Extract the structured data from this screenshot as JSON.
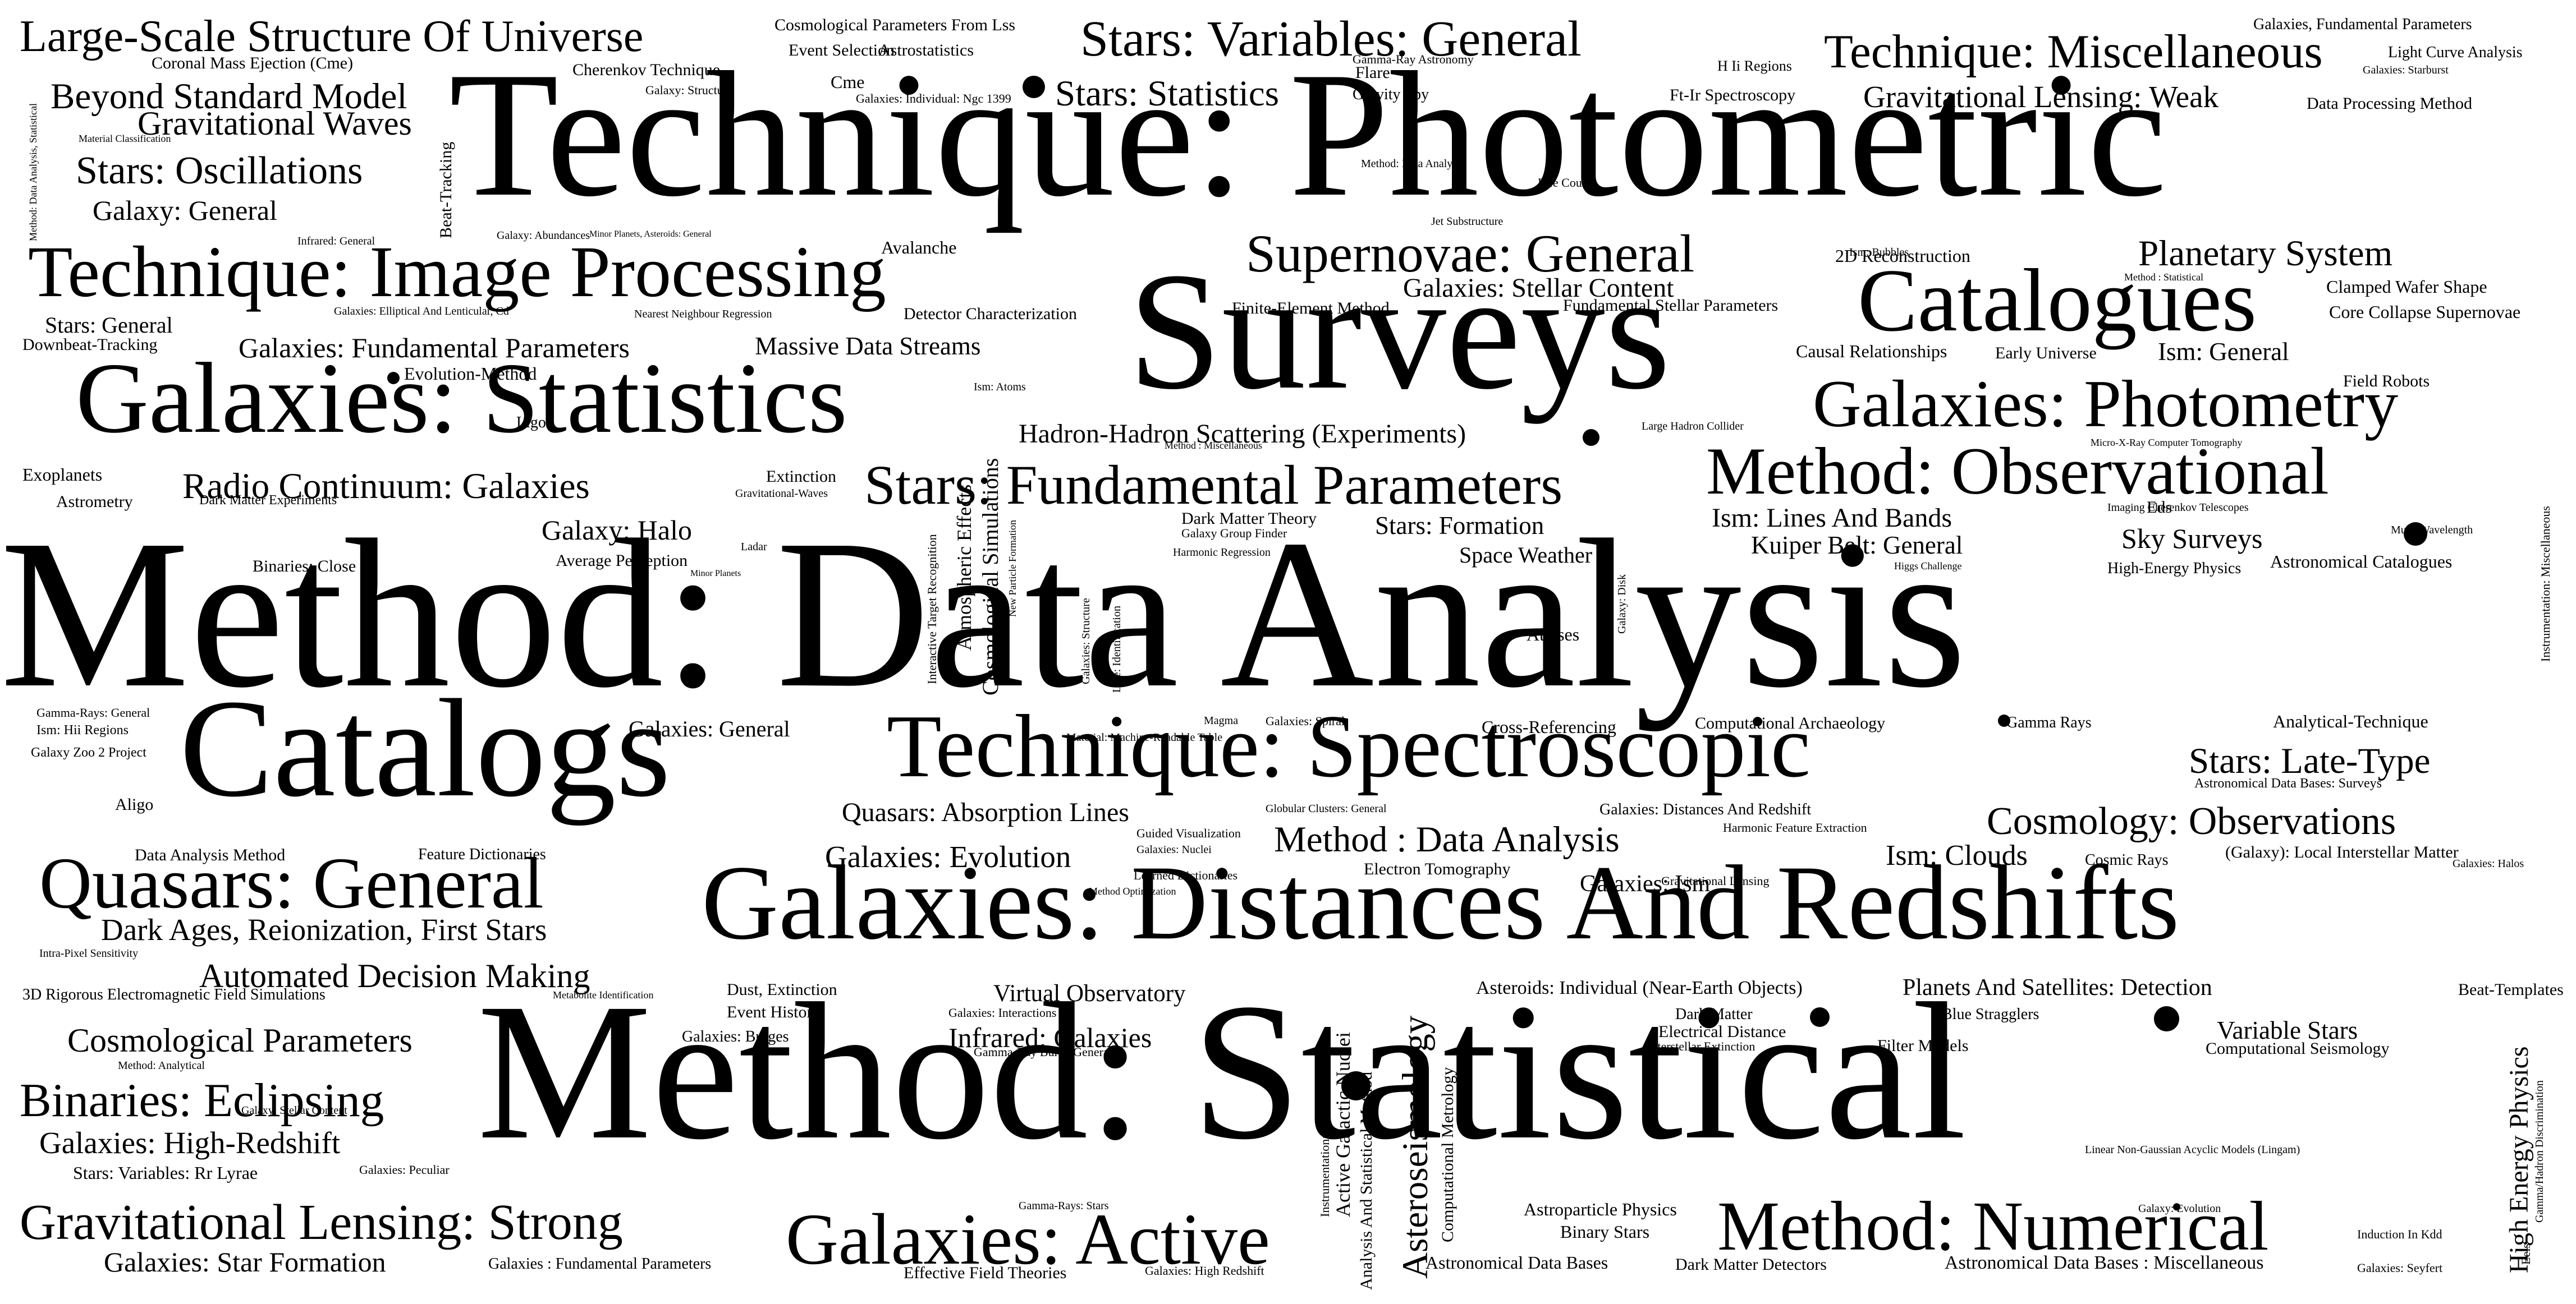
{
  "colors": {
    "text": "#000000",
    "background": "#ffffff"
  },
  "words": [
    "Technique: Photometric",
    "Method: Data Analysis",
    "Method: Statistical",
    "Surveys",
    "Catalogs",
    "Galaxies: Distances And Redshifts",
    "Galaxies: Statistics",
    "Technique: Spectroscopic",
    "Catalogues",
    "Technique: Image Processing",
    "Galaxies: Photometry",
    "Method: Observational",
    "Method: Numerical",
    "Galaxies: Active",
    "Quasars: General",
    "Stars: Fundamental Parameters",
    "Large-Scale Structure Of Universe",
    "Stars: Variables: General",
    "Technique: Miscellaneous",
    "Supernovae: General",
    "Gravitational Lensing: Strong",
    "Binaries: Eclipsing",
    "Stars: Oscillations",
    "Beyond Standard Model",
    "Gravitational Waves",
    "Stars: Statistics",
    "Gravitational Lensing: Weak",
    "Planetary System",
    "Radio Continuum: Galaxies",
    "Method : Data Analysis",
    "Stars: Late-Type",
    "Cosmology: Observations",
    "Dark Ages, Reionization, First Stars",
    "Automated Decision Making",
    "Cosmological Parameters",
    "Galaxies: High-Redshift",
    "Galaxies: Star Formation",
    "Galaxy: General",
    "Galaxies: Fundamental Parameters",
    "Massive Data Streams",
    "Hadron-Hadron Scattering (Experiments)",
    "Galaxies: Stellar Content",
    "Galaxies: Evolution",
    "Quasars: Absorption Lines",
    "Galaxy: Halo",
    "Ism: Lines And Bands",
    "Kuiper Belt: General",
    "Sky Surveys",
    "Ism: General",
    "Ism: Clouds",
    "Stars: Formation",
    "Space Weather",
    "Infrared: Galaxies",
    "Virtual Observatory",
    "Planets And Satellites: Detection",
    "Variable Stars",
    "Galaxies: Ism",
    "Asteroseismology",
    "High Energy Physics",
    "Stars: General",
    "Galaxies: General",
    "Asteroids: Individual (Near-Earth Objects)",
    "Cosmological Simulations",
    "Atmospheric Effects",
    "Active Galactic Nuclei",
    "Analysis And Statistical Method",
    "Computational Metrology",
    "Beat-Tracking",
    "Astronomical Data Bases",
    "Binary Stars",
    "Astroparticle Physics",
    "Dark Matter Detectors",
    "Astronomical Data Bases : Miscellaneous",
    "Galaxies : Fundamental Parameters",
    "Effective Field Theories",
    "Stars: Variables: Rr Lyrae",
    "Coronal Mass Ejection (Cme)",
    "Cosmological Parameters From Lss",
    "Event Selection",
    "Astrostatistics",
    "Cherenkov Technique",
    "Cme",
    "Flare",
    "Gravity Spy",
    "Ft-Ir Spectroscopy",
    "H Ii Regions",
    "Light Curve Analysis",
    "Galaxies, Fundamental Parameters",
    "Data Processing Method",
    "Downbeat-Tracking",
    "Evolution-Method",
    "Avalanche",
    "Detector Characterization",
    "Finite-Element Method",
    "Fundamental Stellar Parameters",
    "2D Reconstruction",
    "Clamped Wafer Shape",
    "Core Collapse Supernovae",
    "Causal Relationships",
    "Early Universe",
    "Field Robots",
    "Exoplanets",
    "Astrometry",
    "Extinction",
    "Ligo",
    "Binaries: Close",
    "Average Perception",
    "Dark Matter Theory",
    "Atlases",
    "Eds",
    "High-Energy Physics",
    "Astronomical Catalogues",
    "Analytical-Technique",
    "Cross-Referencing",
    "Computational Archaeology",
    "Gamma Rays",
    "Aligo",
    "Data Analysis Method",
    "Feature Dictionaries",
    "Galaxies: Distances And Redshift",
    "Cosmic Rays",
    "(Galaxy): Local Interstellar Matter",
    "Electron Tomography",
    "Dust, Extinction",
    "Event History",
    "Dark Matter",
    "Blue Stragglers",
    "Electrical Distance",
    "Filter Models",
    "Beat-Templates",
    "Computational Seismology",
    "Galaxy Zoo 2 Project",
    "Galaxies: Bulges",
    "Galaxies: Interactions",
    "Interstellar Extinction",
    "Gamma-Ray Burst: General",
    "Galaxy: Stellar Content",
    "Galaxies: Peculiar",
    "Gamma-Rays: Stars",
    "Galaxies: High Redshift",
    "Galaxies: Seyfert",
    "Induction In Kdd",
    "Galaxy: Evolution",
    "Linear Non-Gaussian Acyclic Models (Lingam)",
    "Gamma-Ray Astronomy",
    "Galaxies: Starburst",
    "Galaxies: Individual: Ngc 1399",
    "Galaxy: Structure",
    "Material Classification",
    "Method: Data Analysis, Statistical",
    "Infrared: General",
    "Galaxy: Abundances",
    "Minor Planets, Asteroids: General",
    "Method: Data Analysis",
    "Life Course",
    "Jet Substructure",
    "Ism: Bubbles",
    "Method : Statistical",
    "Galaxies: Elliptical And Lenticular, Cd",
    "Nearest Neighbour Regression",
    "Ism: Atoms",
    "Large Hadron Collider",
    "Method : Miscellaneous",
    "Micro-X-Ray Computer Tomography",
    "Gravitational-Waves",
    "Dark Matter Experiments",
    "Ladar",
    "Minor Planets",
    "Galaxy Group Finder",
    "Harmonic Regression",
    "Higgs Challenge",
    "Imaging Cherenkov Telescopes",
    "Multi-Wavelength",
    "Instrumentation: Miscellaneous",
    "Interactive Target Recognition",
    "New Particle Formation",
    "Galaxies: Structure",
    "Line: Identification",
    "Galaxy: Disk",
    "Gamma-Rays: General",
    "Ism: Hii Regions",
    "Material: Machine-Readable Table",
    "Magma",
    "Galaxies: Spiral",
    "Globular Clusters: General",
    "Guided Visualization",
    "Galaxies: Nuclei",
    "Learned Dictionaries",
    "Method Optimization",
    "Harmonic Feature Extraction",
    "Astronomical Data Bases: Surveys",
    "Galaxies: Halos",
    "Gravitational Lensing",
    "Intra-Pixel Sensitivity",
    "3D Rigorous Electromagnetic Field Simulations",
    "Metabolite Identification",
    "Method: Analytical",
    "Instrumentation: Interferometers",
    "Eels",
    "Gamma/Hadron Discrimination"
  ]
}
